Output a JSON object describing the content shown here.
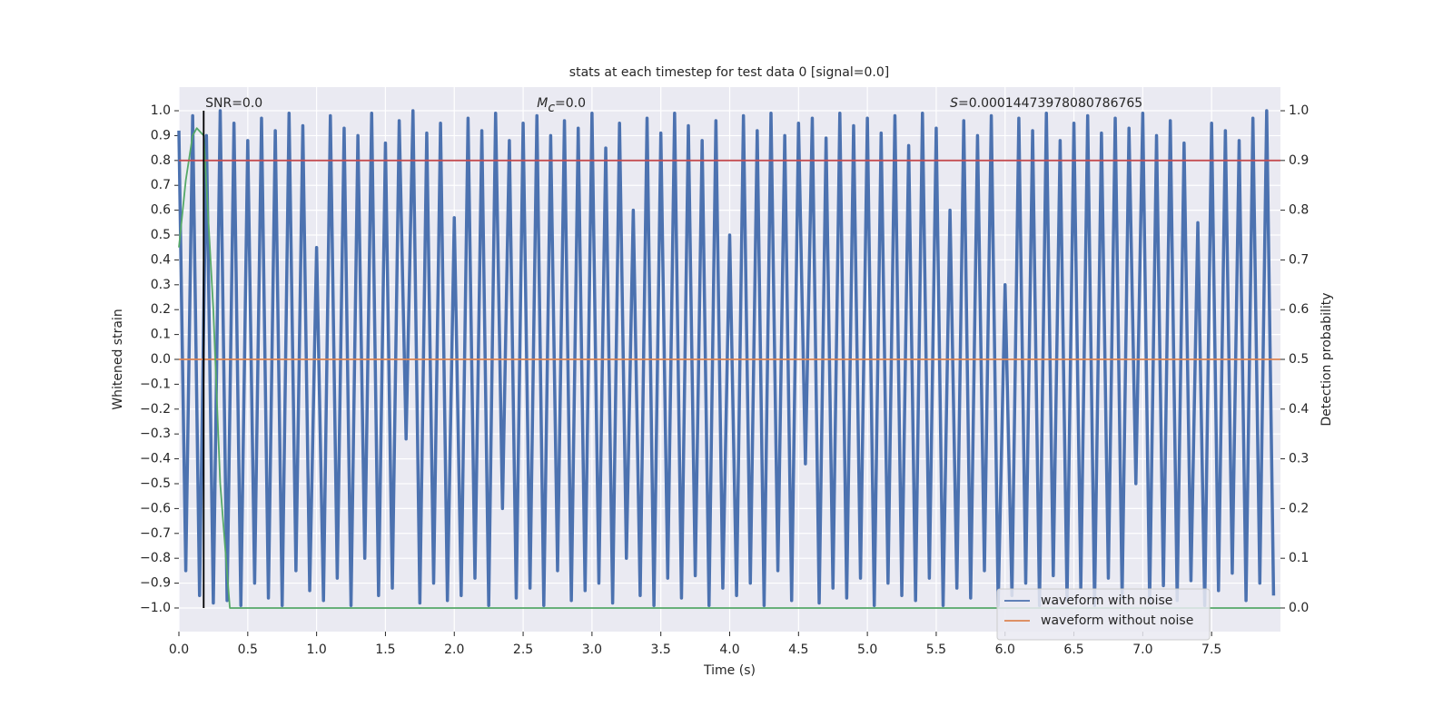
{
  "chart_data": {
    "type": "line",
    "title": "stats at each timestep for test data 0 [signal=0.0]",
    "xlabel": "Time (s)",
    "ylabel": "Whitened strain",
    "y2label": "Detection probability",
    "annotations": [
      {
        "text": "SNR=0.0"
      },
      {
        "symbol": "M",
        "subscript": "c",
        "text": "=0.0"
      },
      {
        "symbol": "S",
        "text": "=0.00014473978080786765"
      }
    ],
    "grid": true,
    "legend": "lower right",
    "xlim": [
      0,
      8
    ],
    "xticks": [
      {
        "value": 0,
        "label": "0.0"
      },
      0.5,
      {
        "value": 1,
        "label": "1.0"
      },
      1.5,
      {
        "value": 2,
        "label": "2.0"
      },
      2.5,
      {
        "value": 3,
        "label": "3.0"
      },
      3.5,
      {
        "value": 4,
        "label": "4.0"
      },
      4.5,
      {
        "value": 5,
        "label": "5.0"
      },
      5.5,
      {
        "value": 6,
        "label": "6.0"
      },
      6.5,
      {
        "value": 7,
        "label": "7.0"
      },
      7.5
    ],
    "ylim": [
      -1.095,
      1.095
    ],
    "yticks": [
      {
        "value": 1,
        "label": "1.0"
      },
      0.9,
      0.8,
      0.7,
      0.6,
      0.5,
      0.4,
      0.3,
      0.2,
      0.1,
      {
        "value": 0,
        "label": "0.0"
      },
      {
        "value": -0.1,
        "label": "−0.1"
      },
      {
        "value": -0.2,
        "label": "−0.2"
      },
      {
        "value": -0.3,
        "label": "−0.3"
      },
      {
        "value": -0.4,
        "label": "−0.4"
      },
      {
        "value": -0.5,
        "label": "−0.5"
      },
      {
        "value": -0.6,
        "label": "−0.6"
      },
      {
        "value": -0.7,
        "label": "−0.7"
      },
      {
        "value": -0.8,
        "label": "−0.8"
      },
      {
        "value": -0.9,
        "label": "−0.9"
      },
      {
        "value": -1,
        "label": "−1.0"
      }
    ],
    "y2lim": [
      -0.0475,
      1.0475
    ],
    "y2ticks": [
      {
        "value": 1,
        "label": "1.0"
      },
      0.9,
      0.8,
      0.7,
      0.6,
      0.5,
      0.4,
      0.3,
      0.2,
      0.1,
      {
        "value": 0,
        "label": "0.0"
      }
    ],
    "series": [
      {
        "name": "waveform with noise",
        "color": "#4c72b0",
        "x": [
          0,
          0.05,
          0.1,
          0.15,
          0.2,
          0.25,
          0.3,
          0.35,
          0.4,
          0.45,
          0.5,
          0.55,
          0.6,
          0.65,
          0.7,
          0.75,
          0.8,
          0.85,
          0.9,
          0.95,
          1,
          1.05,
          1.1,
          1.15,
          1.2,
          1.25,
          1.3,
          1.35,
          1.4,
          1.45,
          1.5,
          1.55,
          1.6,
          1.65,
          1.7,
          1.75,
          1.8,
          1.85,
          1.9,
          1.95,
          2,
          2.05,
          2.1,
          2.15,
          2.2,
          2.25,
          2.3,
          2.35,
          2.4,
          2.45,
          2.5,
          2.55,
          2.6,
          2.65,
          2.7,
          2.75,
          2.8,
          2.85,
          2.9,
          2.95,
          3,
          3.05,
          3.1,
          3.15,
          3.2,
          3.25,
          3.3,
          3.35,
          3.4,
          3.45,
          3.5,
          3.55,
          3.6,
          3.65,
          3.7,
          3.75,
          3.8,
          3.85,
          3.9,
          3.95,
          4,
          4.05,
          4.1,
          4.15,
          4.2,
          4.25,
          4.3,
          4.35,
          4.4,
          4.45,
          4.5,
          4.55,
          4.6,
          4.65,
          4.7,
          4.75,
          4.8,
          4.85,
          4.9,
          4.95,
          5,
          5.05,
          5.1,
          5.15,
          5.2,
          5.25,
          5.3,
          5.35,
          5.4,
          5.45,
          5.5,
          5.55,
          5.6,
          5.65,
          5.7,
          5.75,
          5.8,
          5.85,
          5.9,
          5.95,
          6,
          6.05,
          6.1,
          6.15,
          6.2,
          6.25,
          6.3,
          6.35,
          6.4,
          6.45,
          6.5,
          6.55,
          6.6,
          6.65,
          6.7,
          6.75,
          6.8,
          6.85,
          6.9,
          6.95,
          7,
          7.05,
          7.1,
          7.15,
          7.2,
          7.25,
          7.3,
          7.35,
          7.4,
          7.45,
          7.5,
          7.55,
          7.6,
          7.65,
          7.7,
          7.75,
          7.8,
          7.85,
          7.9,
          7.95
        ],
        "values": [
          0.92,
          -0.85,
          0.98,
          -0.95,
          0.9,
          -0.98,
          1.0,
          -0.97,
          0.95,
          -0.99,
          0.88,
          -0.9,
          0.97,
          -0.96,
          0.92,
          -0.99,
          0.99,
          -0.85,
          0.94,
          -0.93,
          0.45,
          -0.97,
          0.98,
          -0.88,
          0.93,
          -0.99,
          0.9,
          -0.8,
          0.99,
          -0.95,
          0.87,
          -0.92,
          0.96,
          -0.32,
          1.0,
          -0.98,
          0.91,
          -0.9,
          0.95,
          -0.97,
          0.57,
          -0.95,
          0.97,
          -0.88,
          0.92,
          -0.99,
          0.99,
          -0.6,
          0.88,
          -0.96,
          0.95,
          -0.92,
          0.98,
          -0.99,
          0.9,
          -0.85,
          0.96,
          -0.97,
          0.93,
          -0.93,
          0.99,
          -0.9,
          0.85,
          -0.98,
          0.95,
          -0.8,
          0.6,
          -0.95,
          0.97,
          -0.99,
          0.91,
          -0.88,
          0.99,
          -0.96,
          0.94,
          -0.87,
          0.88,
          -0.99,
          0.96,
          -0.92,
          0.5,
          -0.95,
          0.98,
          -0.9,
          0.92,
          -0.99,
          0.99,
          -0.85,
          0.9,
          -0.97,
          0.95,
          -0.42,
          0.97,
          -0.98,
          0.89,
          -0.92,
          0.99,
          -0.96,
          0.94,
          -0.88,
          0.97,
          -0.99,
          0.91,
          -0.9,
          0.98,
          -0.95,
          0.86,
          -0.97,
          0.99,
          -0.88,
          0.93,
          -0.99,
          0.6,
          -0.92,
          0.96,
          -0.96,
          0.9,
          -0.85,
          0.98,
          -0.99,
          0.3,
          -0.95,
          0.97,
          -0.9,
          0.92,
          -0.99,
          0.99,
          -0.87,
          0.88,
          -0.97,
          0.95,
          -0.92,
          0.98,
          -0.99,
          0.91,
          -0.88,
          0.97,
          -0.96,
          0.93,
          -0.5,
          0.99,
          -0.98,
          0.9,
          -0.91,
          0.96,
          -0.97,
          0.87,
          -0.89,
          0.55,
          -0.99,
          0.95,
          -0.93,
          0.92,
          -0.86,
          0.88,
          -0.97,
          0.97,
          -0.9,
          1.0,
          -0.95
        ]
      },
      {
        "name": "waveform without noise",
        "color": "#dd8452",
        "x": [
          0,
          8
        ],
        "values": [
          0,
          0
        ]
      },
      {
        "color": "#55a868",
        "axis": "y2",
        "x": [
          0,
          0.05,
          0.1,
          0.13,
          0.18,
          0.25,
          0.3,
          0.37,
          8
        ],
        "values": [
          0.725,
          0.86,
          0.95,
          0.965,
          0.95,
          0.6,
          0.25,
          0,
          0
        ]
      }
    ],
    "hlines": [
      {
        "value": 0.9,
        "axis": "y2",
        "color": "#c44e52"
      }
    ],
    "vlines": [
      {
        "value": 0.18,
        "color": "#000000"
      }
    ]
  }
}
